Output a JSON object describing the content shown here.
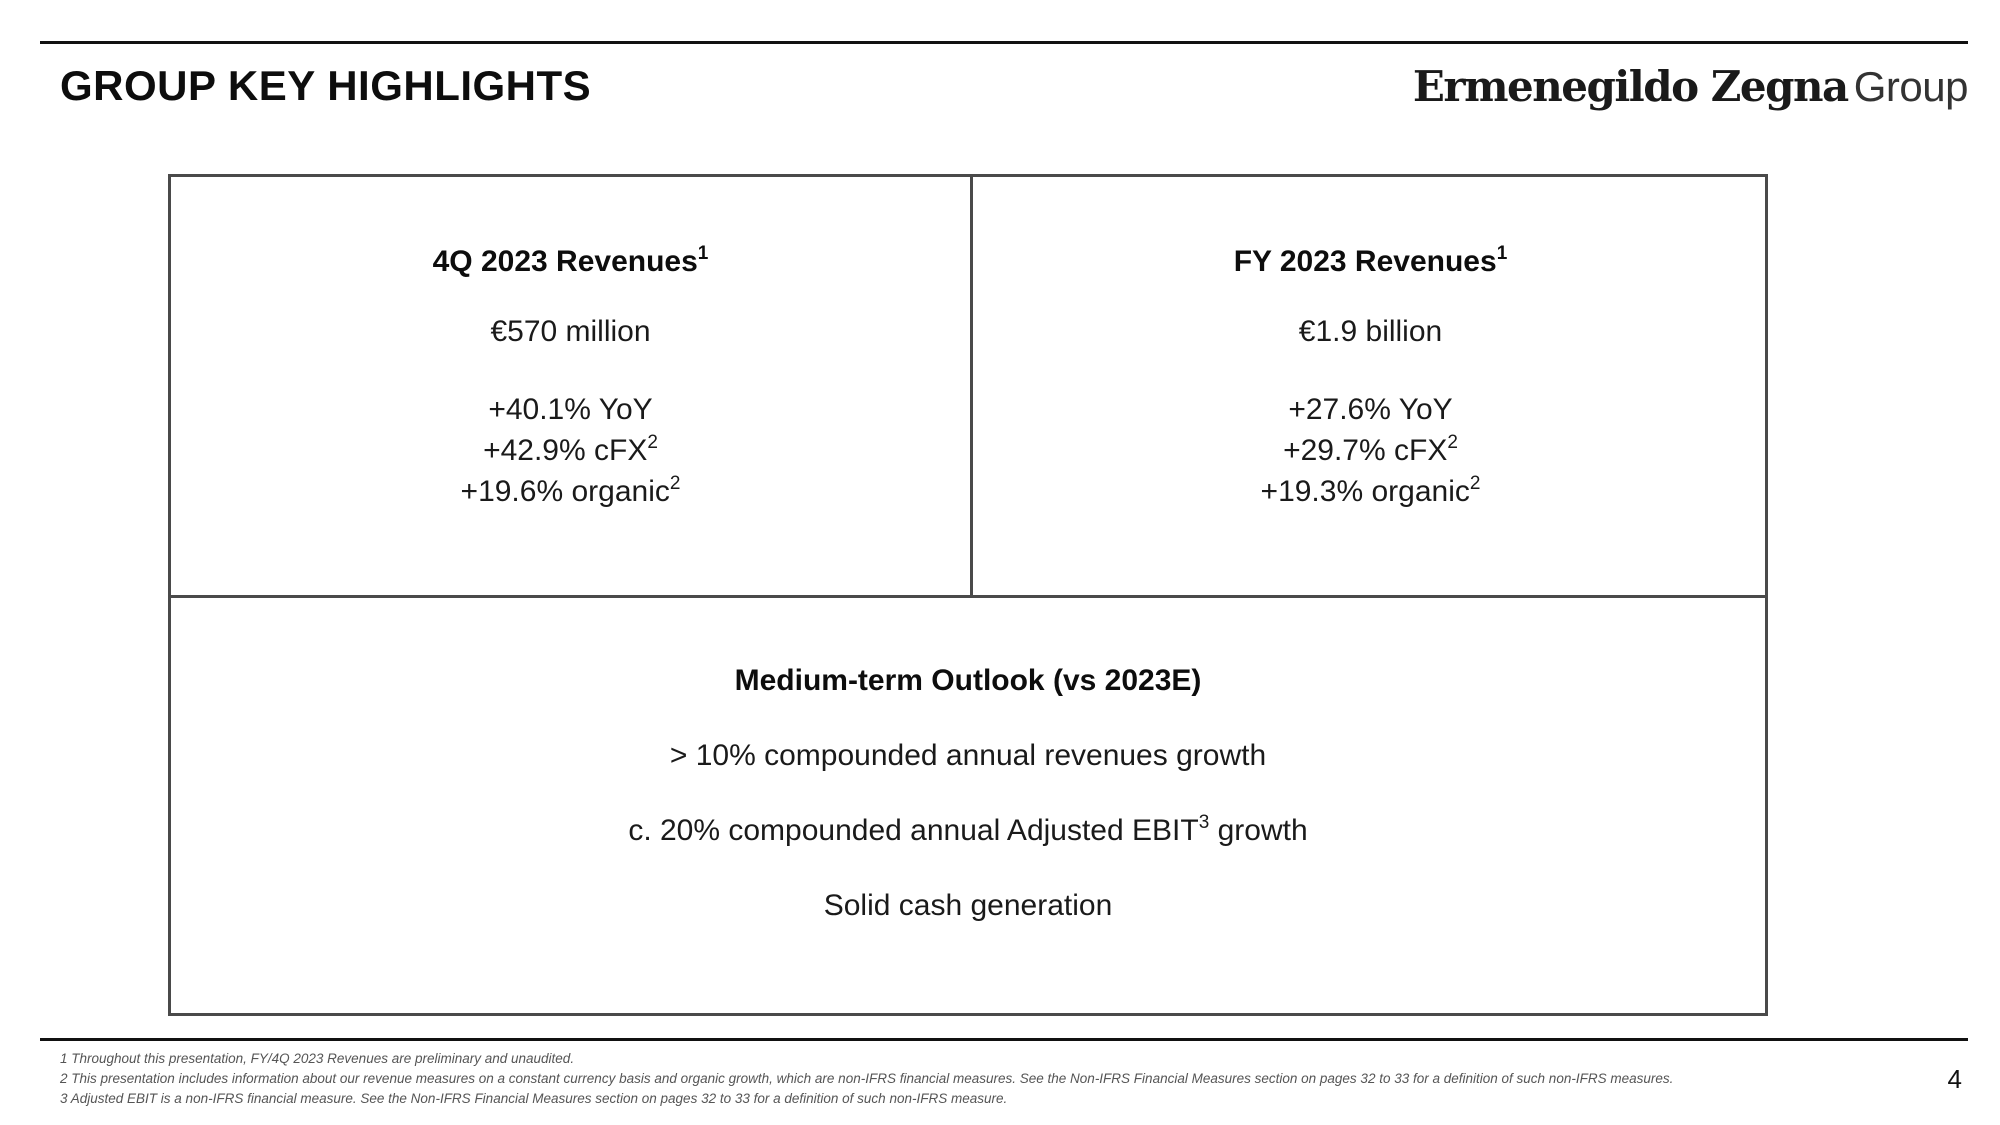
{
  "header": {
    "title": "GROUP KEY HIGHLIGHTS",
    "logo_brand": "Ermenegildo Zegna",
    "logo_group": "Group"
  },
  "panels": {
    "q4": {
      "title": "4Q 2023 Revenues",
      "title_note": "1",
      "amount": "€570 million",
      "yoy": "+40.1% YoY",
      "cfx": "+42.9% cFX",
      "cfx_note": "2",
      "organic": "+19.6% organic",
      "organic_note": "2"
    },
    "fy": {
      "title": "FY 2023 Revenues",
      "title_note": "1",
      "amount": "€1.9 billion",
      "yoy": "+27.6% YoY",
      "cfx": "+29.7% cFX",
      "cfx_note": "2",
      "organic": "+19.3% organic",
      "organic_note": "2"
    },
    "outlook": {
      "title": "Medium-term Outlook (vs 2023E)",
      "line1": "> 10% compounded annual revenues growth",
      "line2_pre": "c. 20% compounded annual Adjusted EBIT",
      "line2_note": "3",
      "line2_post": " growth",
      "line3": "Solid cash generation"
    }
  },
  "footnotes": [
    "1 Throughout this presentation, FY/4Q 2023 Revenues are preliminary and unaudited.",
    "2 This presentation includes information about our revenue measures on a constant currency basis and organic growth, which are non-IFRS financial measures. See the Non-IFRS Financial Measures section on pages 32 to 33 for a definition of such non-IFRS measures.",
    "3 Adjusted EBIT is a non-IFRS financial measure. See the Non-IFRS Financial Measures section on pages 32 to 33 for a definition of such non-IFRS measure."
  ],
  "page_number": "4"
}
